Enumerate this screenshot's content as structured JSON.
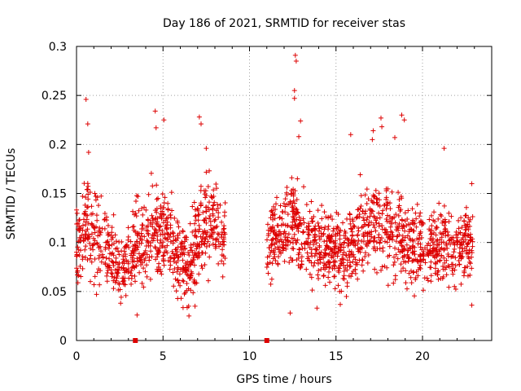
{
  "chart_data": {
    "type": "scatter",
    "title": "Day 186 of 2021, SRMTID for receiver stas",
    "xlabel": "GPS time / hours",
    "ylabel": "SRMTID / TECUs",
    "xlim": [
      0,
      24
    ],
    "ylim": [
      0,
      0.3
    ],
    "xticks": [
      0,
      5,
      10,
      15,
      20
    ],
    "xtick_labels": [
      "0",
      "5",
      "10",
      "15",
      "20"
    ],
    "yticks": [
      0,
      0.05,
      0.1,
      0.15,
      0.2,
      0.25,
      0.3
    ],
    "ytick_labels": [
      "0",
      "0.05",
      "0.1",
      "0.15",
      "0.2",
      "0.25",
      "0.3"
    ],
    "grid": true,
    "marker": "plus",
    "color": "#dd0000",
    "gap_markers": {
      "shape": "square",
      "y": 0,
      "x": [
        3.4,
        11.0
      ]
    },
    "series": [
      {
        "name": "SRMTID",
        "segments": [
          {
            "x_range": [
              0.0,
              8.6
            ]
          },
          {
            "x_range": [
              11.0,
              22.9
            ]
          }
        ],
        "profile": [
          {
            "x": 0.0,
            "center": 0.1,
            "spread": 0.025
          },
          {
            "x": 0.6,
            "center": 0.12,
            "spread": 0.03
          },
          {
            "x": 1.2,
            "center": 0.105,
            "spread": 0.03
          },
          {
            "x": 2.0,
            "center": 0.085,
            "spread": 0.025
          },
          {
            "x": 2.8,
            "center": 0.075,
            "spread": 0.022
          },
          {
            "x": 3.5,
            "center": 0.095,
            "spread": 0.025
          },
          {
            "x": 4.5,
            "center": 0.115,
            "spread": 0.03
          },
          {
            "x": 5.5,
            "center": 0.1,
            "spread": 0.03
          },
          {
            "x": 6.4,
            "center": 0.075,
            "spread": 0.025
          },
          {
            "x": 7.5,
            "center": 0.125,
            "spread": 0.035
          },
          {
            "x": 8.6,
            "center": 0.1,
            "spread": 0.025
          },
          {
            "x": 11.0,
            "center": 0.095,
            "spread": 0.022
          },
          {
            "x": 12.5,
            "center": 0.12,
            "spread": 0.03
          },
          {
            "x": 14.0,
            "center": 0.095,
            "spread": 0.025
          },
          {
            "x": 15.5,
            "center": 0.09,
            "spread": 0.025
          },
          {
            "x": 16.8,
            "center": 0.12,
            "spread": 0.03
          },
          {
            "x": 18.0,
            "center": 0.115,
            "spread": 0.03
          },
          {
            "x": 19.5,
            "center": 0.095,
            "spread": 0.025
          },
          {
            "x": 21.0,
            "center": 0.095,
            "spread": 0.025
          },
          {
            "x": 22.9,
            "center": 0.1,
            "spread": 0.025
          }
        ],
        "points_per_hour": 95,
        "x": [
          0.55,
          0.65,
          3.55,
          4.55,
          4.6,
          5.05,
          7.1,
          7.2,
          7.5,
          12.65,
          12.7,
          12.6,
          12.6,
          12.95,
          12.85,
          15.85,
          17.15,
          17.6,
          17.1,
          17.65,
          18.4,
          18.8,
          18.95,
          20.95,
          21.25,
          22.85,
          0.7,
          2.55,
          3.5,
          6.5,
          6.85,
          12.35,
          13.9,
          22.85
        ],
        "y": [
          0.246,
          0.221,
          0.147,
          0.234,
          0.217,
          0.225,
          0.228,
          0.221,
          0.196,
          0.291,
          0.285,
          0.255,
          0.247,
          0.224,
          0.208,
          0.21,
          0.214,
          0.227,
          0.205,
          0.218,
          0.207,
          0.23,
          0.225,
          0.14,
          0.196,
          0.16,
          0.192,
          0.038,
          0.026,
          0.025,
          0.035,
          0.028,
          0.033,
          0.036
        ]
      }
    ]
  }
}
